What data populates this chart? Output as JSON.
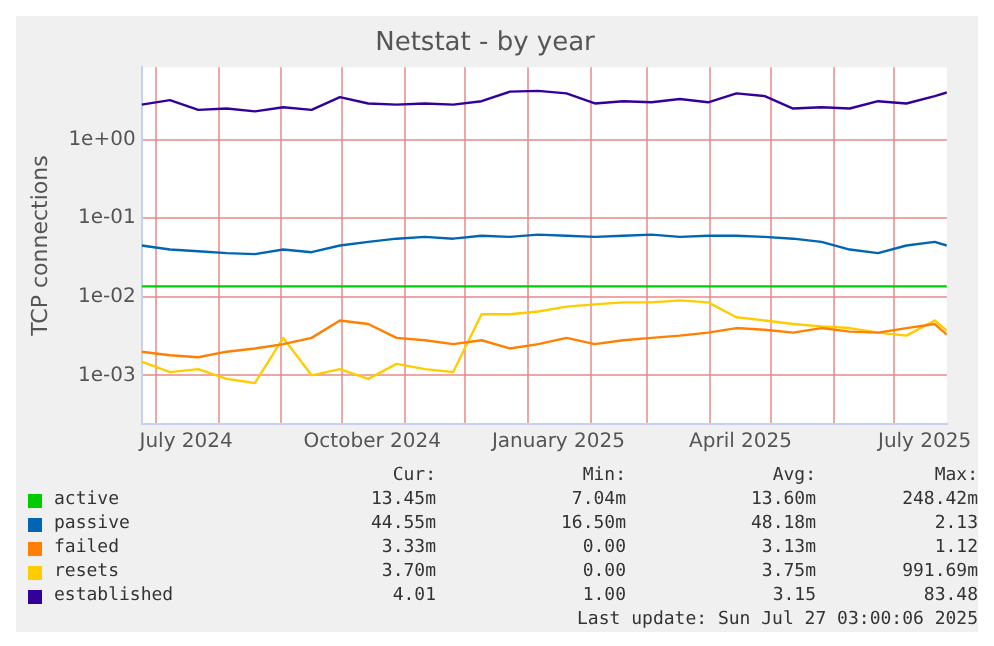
{
  "chart_data": {
    "type": "line",
    "title": "Netstat - by year",
    "ylabel": "TCP connections",
    "log": "y",
    "grid": true,
    "legend": "bottom",
    "marker": "none",
    "x": [
      "2024-06-24",
      "2024-07-08",
      "2024-07-22",
      "2024-08-05",
      "2024-08-19",
      "2024-09-02",
      "2024-09-16",
      "2024-09-30",
      "2024-10-14",
      "2024-10-28",
      "2024-11-11",
      "2024-11-25",
      "2024-12-09",
      "2024-12-23",
      "2025-01-06",
      "2025-01-20",
      "2025-02-03",
      "2025-02-17",
      "2025-03-03",
      "2025-03-17",
      "2025-03-31",
      "2025-04-14",
      "2025-04-28",
      "2025-05-12",
      "2025-05-26",
      "2025-06-09",
      "2025-06-23",
      "2025-07-07",
      "2025-07-21",
      "2025-07-27"
    ],
    "xlim": [
      "2024-06-24",
      "2025-07-27"
    ],
    "xticks": [
      {
        "value": "2024-07-01",
        "label": null
      },
      {
        "value": "2024-07-16",
        "label": "July 2024"
      },
      {
        "value": "2024-08-01",
        "label": null
      },
      {
        "value": "2024-09-01",
        "label": null
      },
      {
        "value": "2024-10-01",
        "label": null
      },
      {
        "value": "2024-10-16",
        "label": "October 2024"
      },
      {
        "value": "2024-11-01",
        "label": null
      },
      {
        "value": "2024-12-01",
        "label": null
      },
      {
        "value": "2025-01-01",
        "label": null
      },
      {
        "value": "2025-01-16",
        "label": "January 2025"
      },
      {
        "value": "2025-02-01",
        "label": null
      },
      {
        "value": "2025-03-01",
        "label": null
      },
      {
        "value": "2025-04-01",
        "label": null
      },
      {
        "value": "2025-04-16",
        "label": "April 2025"
      },
      {
        "value": "2025-05-01",
        "label": null
      },
      {
        "value": "2025-06-01",
        "label": null
      },
      {
        "value": "2025-07-01",
        "label": null
      },
      {
        "value": "2025-07-16",
        "label": "July 2025"
      }
    ],
    "ylim": [
      0.00024,
      8.4
    ],
    "yticks": [
      {
        "value": 0.001,
        "label": "1e-03"
      },
      {
        "value": 0.01,
        "label": "1e-02"
      },
      {
        "value": 0.1,
        "label": "1e-01"
      },
      {
        "value": 1,
        "label": "1e+00"
      }
    ],
    "series": [
      {
        "name": "active",
        "color": "#00cc00",
        "values": [
          0.0136,
          0.0136,
          0.0136,
          0.0136,
          0.0136,
          0.0136,
          0.0136,
          0.0136,
          0.0136,
          0.0136,
          0.0136,
          0.0136,
          0.0136,
          0.0136,
          0.0136,
          0.0136,
          0.0136,
          0.0136,
          0.0136,
          0.0136,
          0.0136,
          0.0136,
          0.0136,
          0.0136,
          0.0136,
          0.0136,
          0.0136,
          0.0136,
          0.0136,
          0.0136
        ]
      },
      {
        "name": "passive",
        "color": "#0066b3",
        "values": [
          0.045,
          0.04,
          0.038,
          0.036,
          0.035,
          0.04,
          0.037,
          0.045,
          0.05,
          0.055,
          0.058,
          0.055,
          0.06,
          0.058,
          0.062,
          0.06,
          0.058,
          0.06,
          0.062,
          0.058,
          0.06,
          0.06,
          0.058,
          0.055,
          0.05,
          0.04,
          0.036,
          0.045,
          0.05,
          0.045
        ]
      },
      {
        "name": "failed",
        "color": "#ff8000",
        "values": [
          0.002,
          0.0018,
          0.0017,
          0.002,
          0.0022,
          0.0025,
          0.003,
          0.005,
          0.0045,
          0.003,
          0.0028,
          0.0025,
          0.0028,
          0.0022,
          0.0025,
          0.003,
          0.0025,
          0.0028,
          0.003,
          0.0032,
          0.0035,
          0.004,
          0.0038,
          0.0035,
          0.004,
          0.0036,
          0.0035,
          0.004,
          0.0045,
          0.0033
        ]
      },
      {
        "name": "resets",
        "color": "#ffcc00",
        "values": [
          0.0015,
          0.0011,
          0.0012,
          0.0009,
          0.0008,
          0.003,
          0.001,
          0.0012,
          0.0009,
          0.0014,
          0.0012,
          0.0011,
          0.006,
          0.006,
          0.0065,
          0.0075,
          0.008,
          0.0085,
          0.0085,
          0.009,
          0.0085,
          0.0055,
          0.005,
          0.0045,
          0.0042,
          0.004,
          0.0035,
          0.0032,
          0.005,
          0.0037
        ]
      },
      {
        "name": "established",
        "color": "#330099",
        "values": [
          2.8,
          3.2,
          2.4,
          2.5,
          2.3,
          2.6,
          2.4,
          3.5,
          2.9,
          2.8,
          2.9,
          2.8,
          3.1,
          4.1,
          4.2,
          3.9,
          2.9,
          3.1,
          3.0,
          3.3,
          3.0,
          3.9,
          3.6,
          2.5,
          2.6,
          2.5,
          3.1,
          2.9,
          3.6,
          4.0
        ]
      }
    ],
    "annotations": [
      "Cur:",
      "Min:",
      "Avg:",
      "Max:",
      "13.45m",
      "7.04m",
      "13.60m",
      "248.42m",
      "44.55m",
      "16.50m",
      "48.18m",
      "2.13",
      "3.33m",
      "0.00",
      "3.13m",
      "1.12",
      "3.70m",
      "0.00",
      "3.75m",
      "991.69m",
      "4.01",
      "1.00",
      "3.15",
      "83.48",
      "Last update: Sun Jul 27 03:00:06 2025"
    ]
  }
}
